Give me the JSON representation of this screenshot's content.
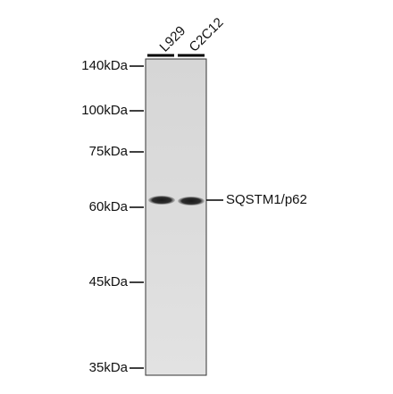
{
  "lanes": [
    "L929",
    "C2C12"
  ],
  "markers": [
    "140kDa",
    "100kDa",
    "75kDa",
    "60kDa",
    "45kDa",
    "35kDa"
  ],
  "band_label": "SQSTM1/p62"
}
